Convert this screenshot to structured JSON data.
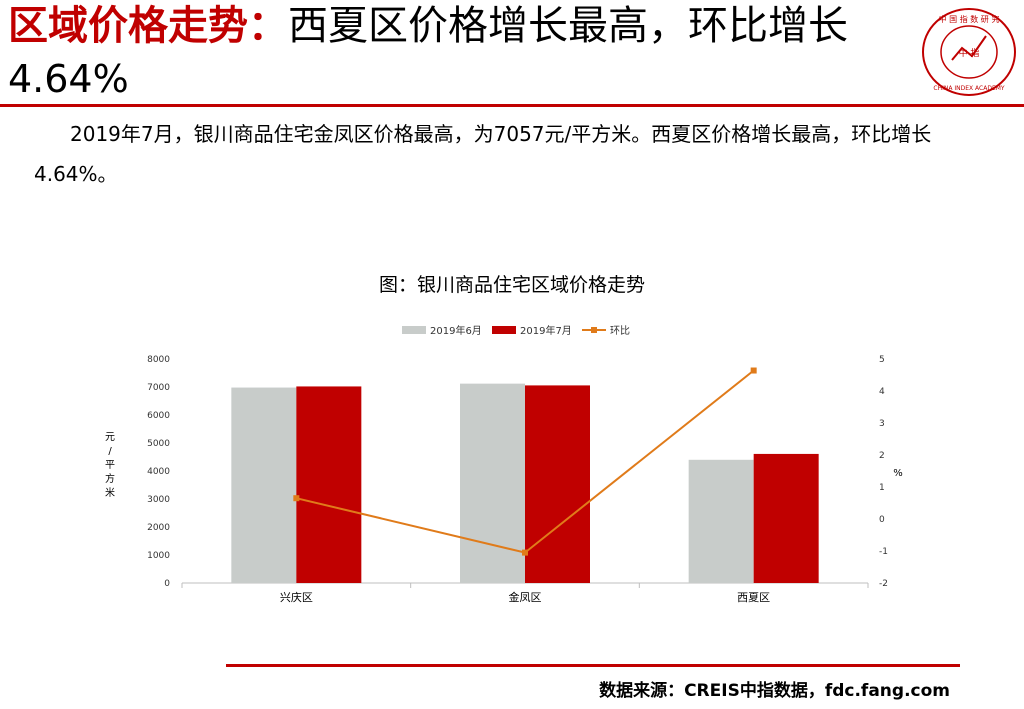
{
  "header": {
    "title_red": "区域价格走势：",
    "title_black": "西夏区价格增长最高，环比增长",
    "title_line2": "4.64%",
    "logo": {
      "icon": "china-index-academy-seal",
      "ring_text": "中国指数研究院",
      "center_text": "中指",
      "english_text": "CHINA INDEX ACADEMY",
      "color": "#c00000"
    }
  },
  "paragraph": "2019年7月，银川商品住宅金凤区价格最高，为7057元/平方米。西夏区价格增长最高，环比增长4.64%。",
  "chart_title": "图：银川商品住宅区域价格走势",
  "chart_data": {
    "type": "bar",
    "categories": [
      "兴庆区",
      "金凤区",
      "西夏区"
    ],
    "series": [
      {
        "name": "2019年6月",
        "type": "bar",
        "axis": "left",
        "color": "#c8ccca",
        "values": [
          6980,
          7120,
          4400
        ]
      },
      {
        "name": "2019年7月",
        "type": "bar",
        "axis": "left",
        "color": "#c00000",
        "values": [
          7020,
          7057,
          4610
        ]
      },
      {
        "name": "环比",
        "type": "line",
        "axis": "right",
        "color": "#e07b1a",
        "values": [
          0.65,
          -1.05,
          4.64
        ]
      }
    ],
    "y_left": {
      "label": "元/平方米",
      "min": 0,
      "max": 8000,
      "ticks": [
        0,
        1000,
        2000,
        3000,
        4000,
        5000,
        6000,
        7000,
        8000
      ]
    },
    "y_right": {
      "label": "%",
      "min": -2,
      "max": 5,
      "ticks": [
        -2,
        -1,
        0,
        1,
        2,
        3,
        4,
        5
      ]
    },
    "legend": {
      "position": "top"
    },
    "grid": false
  },
  "footer": {
    "source": "数据来源：CREIS中指数据，fdc.fang.com"
  }
}
